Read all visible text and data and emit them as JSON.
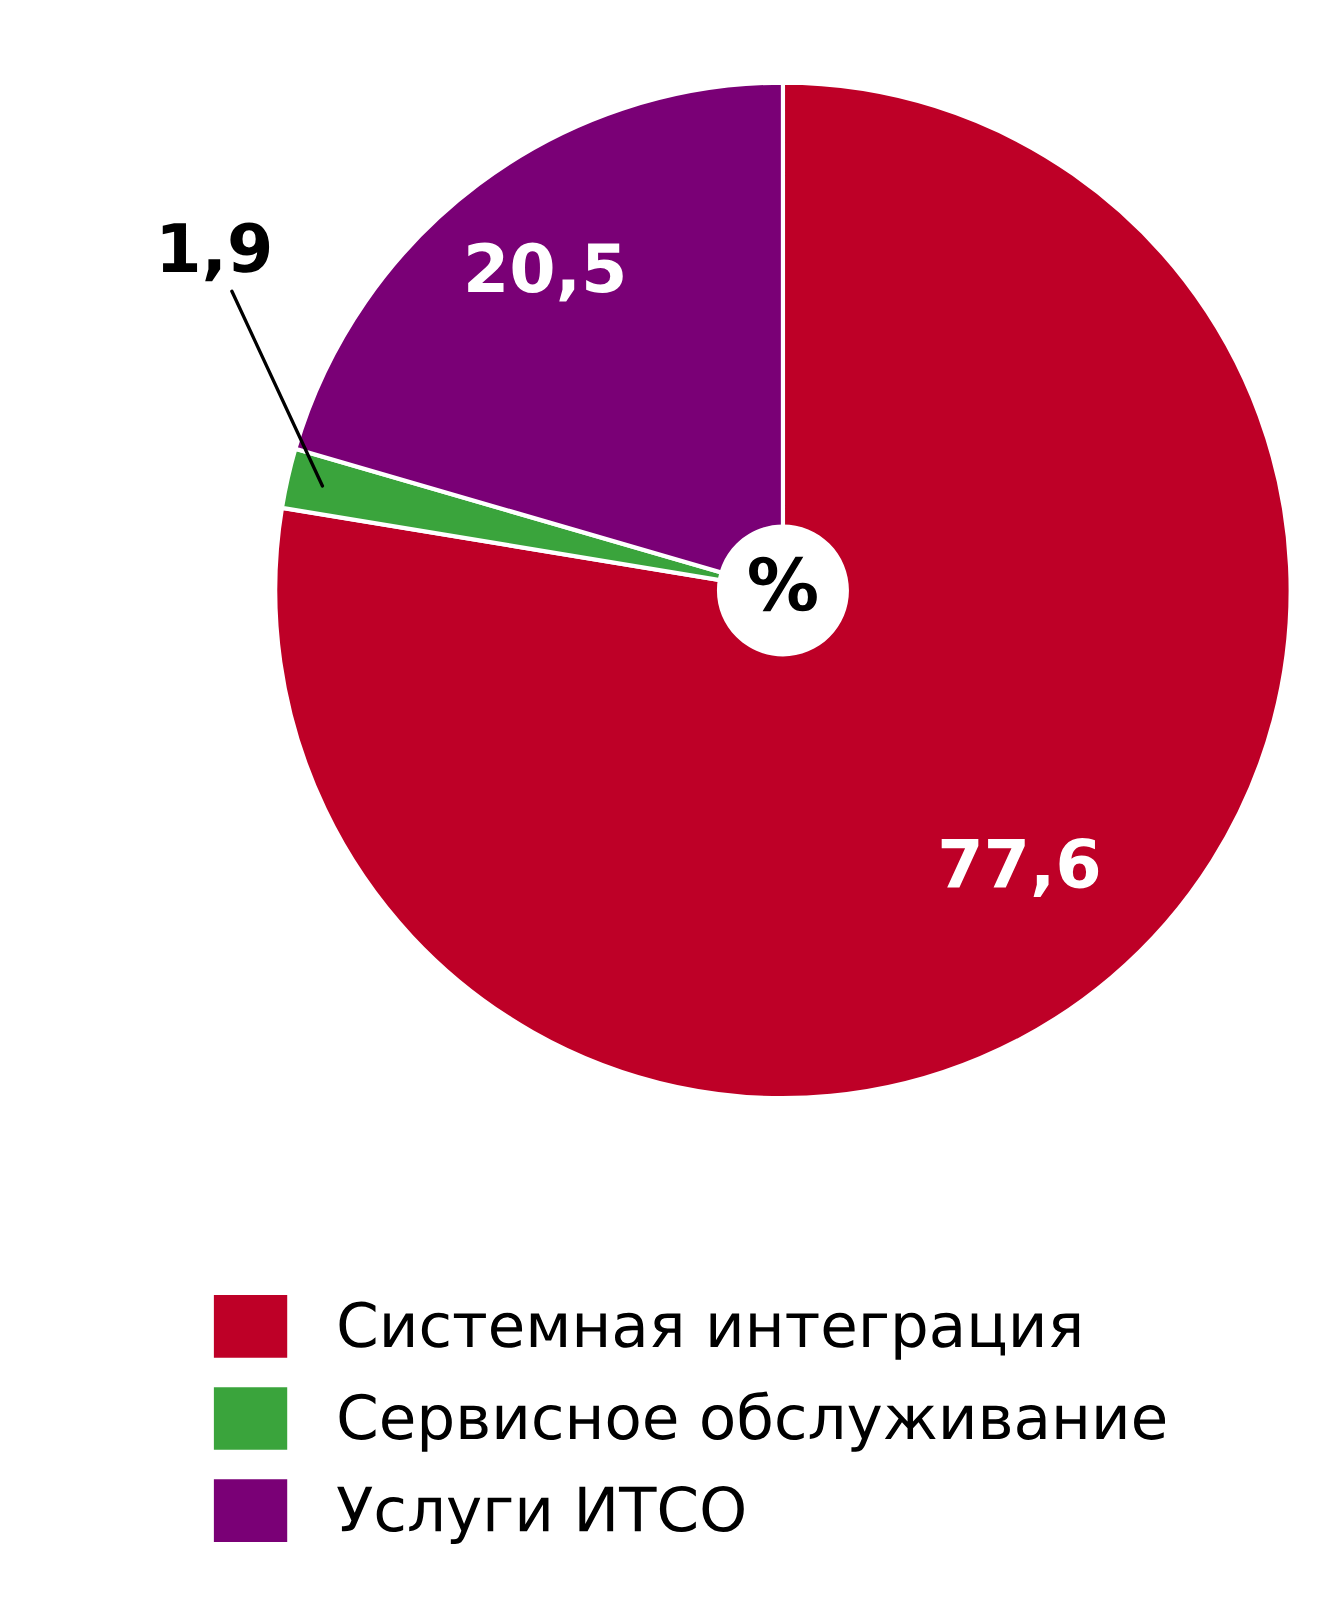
{
  "chart_data": {
    "type": "pie",
    "categories": [
      "Системная интеграция",
      "Сервисное обслуживание",
      "Услуги ИТСО"
    ],
    "values": [
      77.6,
      1.9,
      20.5
    ],
    "colors": [
      "#be0027",
      "#3aa43c",
      "#7a0076"
    ],
    "value_labels": [
      "77,6",
      "1,9",
      "20,5"
    ],
    "annotations": [
      "%"
    ],
    "legend": "bottom"
  }
}
